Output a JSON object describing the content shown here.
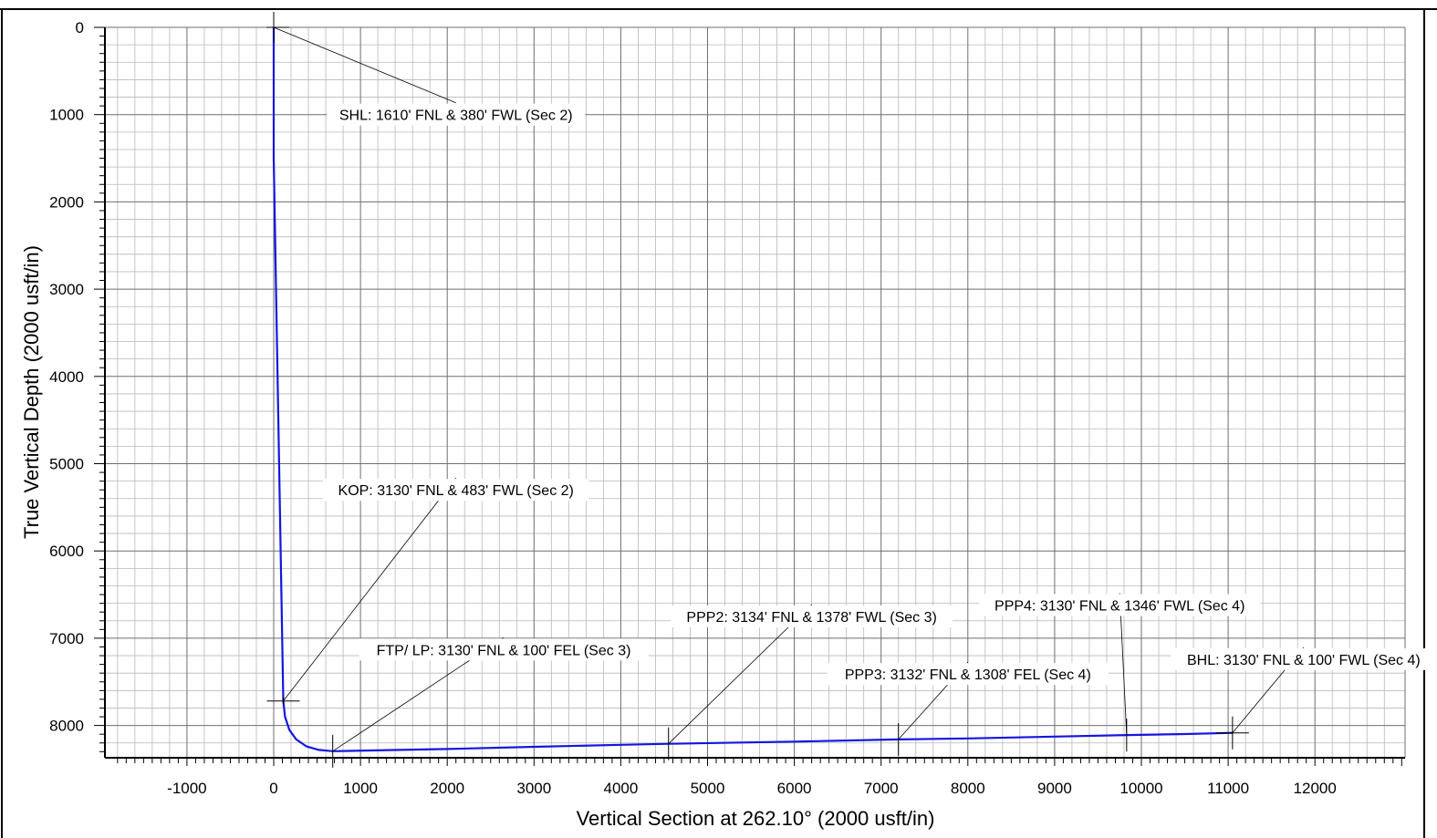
{
  "chart_data": {
    "type": "line",
    "xlabel": "Vertical Section at 262.10° (2000 usft/in)",
    "ylabel": "True Vertical Depth (2000 usft/in)",
    "xlim": [
      -1900,
      13100
    ],
    "ylim": [
      8390,
      -60
    ],
    "y_inverted": true,
    "grid": true,
    "x_ticks": [
      {
        "value": -1000,
        "label": "-1000"
      },
      {
        "value": 0,
        "label": "0"
      },
      {
        "value": 1000,
        "label": "1000"
      },
      {
        "value": 2000,
        "label": "2000"
      },
      {
        "value": 3000,
        "label": "3000"
      },
      {
        "value": 4000,
        "label": "4000"
      },
      {
        "value": 5000,
        "label": "5000"
      },
      {
        "value": 6000,
        "label": "6000"
      },
      {
        "value": 7000,
        "label": "7000"
      },
      {
        "value": 8000,
        "label": "8000"
      },
      {
        "value": 9000,
        "label": "9000"
      },
      {
        "value": 10000,
        "label": "10000"
      },
      {
        "value": 11000,
        "label": "11000"
      },
      {
        "value": 12000,
        "label": "12000"
      }
    ],
    "y_ticks": [
      {
        "value": 0,
        "label": "0"
      },
      {
        "value": 1000,
        "label": "1000"
      },
      {
        "value": 2000,
        "label": "2000"
      },
      {
        "value": 3000,
        "label": "3000"
      },
      {
        "value": 4000,
        "label": "4000"
      },
      {
        "value": 5000,
        "label": "5000"
      },
      {
        "value": 6000,
        "label": "6000"
      },
      {
        "value": 7000,
        "label": "7000"
      },
      {
        "value": 8000,
        "label": "8000"
      }
    ],
    "series": [
      {
        "color": "#1515e0",
        "points": [
          [
            0,
            0
          ],
          [
            0,
            1500
          ],
          [
            110,
            7720
          ],
          [
            130,
            7900
          ],
          [
            180,
            8050
          ],
          [
            260,
            8160
          ],
          [
            380,
            8240
          ],
          [
            520,
            8280
          ],
          [
            680,
            8295
          ],
          [
            2000,
            8270
          ],
          [
            3000,
            8245
          ],
          [
            4000,
            8222
          ],
          [
            4550,
            8210
          ],
          [
            6000,
            8185
          ],
          [
            7200,
            8160
          ],
          [
            8000,
            8148
          ],
          [
            9000,
            8128
          ],
          [
            9830,
            8110
          ],
          [
            10500,
            8098
          ],
          [
            11050,
            8085
          ]
        ]
      }
    ],
    "annotations": [
      {
        "text": "SHL: 1610' FNL & 380' FWL (Sec 2)",
        "point": [
          0,
          0
        ],
        "label_pos": [
          2100,
          1000
        ]
      },
      {
        "text": "KOP: 3130' FNL & 483' FWL  (Sec 2)",
        "point": [
          110,
          7720
        ],
        "label_pos": [
          2100,
          5300
        ]
      },
      {
        "text": "FTP/ LP: 3130' FNL & 100' FEL (Sec 3)",
        "point": [
          680,
          8295
        ],
        "label_pos": [
          2650,
          7130
        ]
      },
      {
        "text": "PPP2: 3134' FNL & 1378' FWL  (Sec 3)",
        "point": [
          4550,
          8210
        ],
        "label_pos": [
          6200,
          6750
        ]
      },
      {
        "text": "PPP3: 3132' FNL & 1308' FEL  (Sec 4)",
        "point": [
          7200,
          8160
        ],
        "label_pos": [
          8000,
          7410
        ]
      },
      {
        "text": "PPP4: 3130' FNL & 1346' FWL  (Sec 4)",
        "point": [
          9830,
          8110
        ],
        "label_pos": [
          9750,
          6620
        ]
      },
      {
        "text": "BHL: 3130' FNL & 100' FWL  (Sec 4)",
        "point": [
          11050,
          8085
        ],
        "label_pos": [
          11870,
          7240
        ]
      }
    ]
  }
}
